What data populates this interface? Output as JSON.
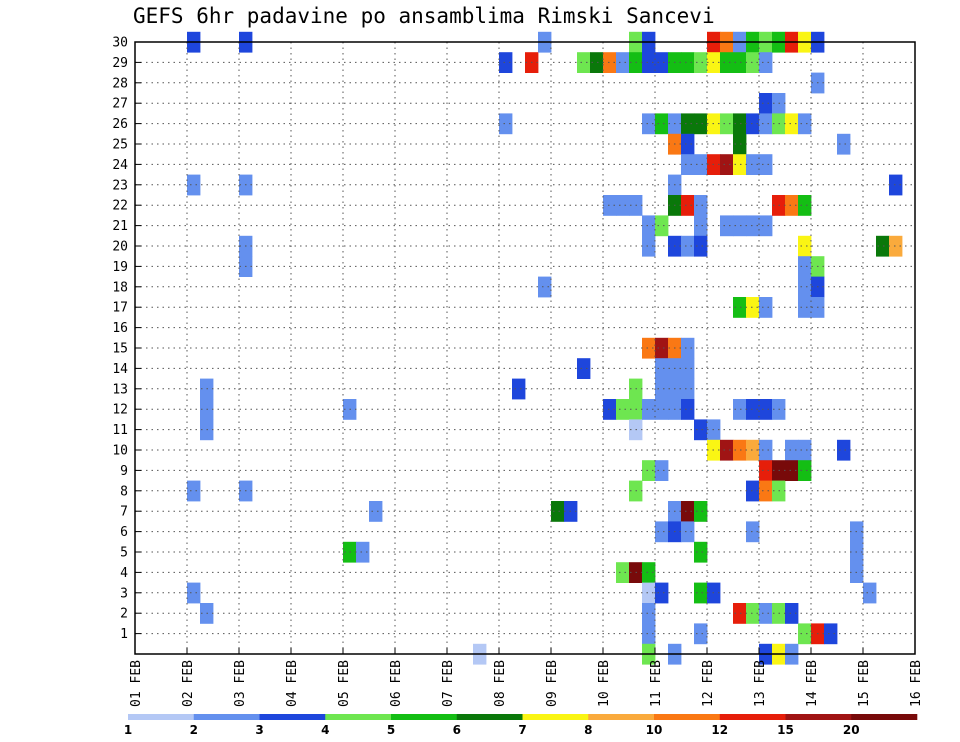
{
  "chart_data": {
    "type": "heatmap",
    "title": "GEFS 6hr padavine po ansamblima Rimski Sancevi",
    "x_ticks": [
      "01 FEB",
      "02 FEB",
      "03 FEB",
      "04 FEB",
      "05 FEB",
      "06 FEB",
      "07 FEB",
      "08 FEB",
      "09 FEB",
      "10 FEB",
      "11 FEB",
      "12 FEB",
      "13 FEB",
      "14 FEB",
      "15 FEB",
      "16 FEB"
    ],
    "y_ticks": [
      "1",
      "2",
      "3",
      "4",
      "5",
      "6",
      "7",
      "8",
      "9",
      "10",
      "11",
      "12",
      "13",
      "14",
      "15",
      "16",
      "17",
      "18",
      "19",
      "20",
      "21",
      "22",
      "23",
      "24",
      "25",
      "26",
      "27",
      "28",
      "29",
      "30"
    ],
    "grid": true,
    "colorbar": {
      "labels": [
        "1",
        "2",
        "3",
        "4",
        "5",
        "6",
        "7",
        "8",
        "10",
        "12",
        "15",
        "20"
      ],
      "colors": [
        "#b4c8f5",
        "#6490ee",
        "#1e46dc",
        "#6ee650",
        "#14be14",
        "#0a780a",
        "#faf514",
        "#faaa3c",
        "#fa7814",
        "#e61e0a",
        "#a01414",
        "#780a0a"
      ]
    },
    "cells": [
      [
        2.0,
        30,
        2
      ],
      [
        2.0,
        3,
        1
      ],
      [
        2.0,
        8,
        1
      ],
      [
        2.0,
        23,
        1
      ],
      [
        2.25,
        12,
        1
      ],
      [
        2.25,
        13,
        1
      ],
      [
        2.25,
        2,
        1
      ],
      [
        2.25,
        11,
        1
      ],
      [
        3.0,
        30,
        2
      ],
      [
        3.0,
        19,
        1
      ],
      [
        3.0,
        20,
        1
      ],
      [
        3.0,
        8,
        1
      ],
      [
        3.0,
        23,
        1
      ],
      [
        5.0,
        5,
        4
      ],
      [
        5.25,
        5,
        1
      ],
      [
        5.0,
        12,
        1
      ],
      [
        5.5,
        7,
        1
      ],
      [
        7.5,
        0,
        0
      ],
      [
        8.0,
        29,
        2
      ],
      [
        8.0,
        26,
        1
      ],
      [
        8.25,
        13,
        2
      ],
      [
        8.5,
        29,
        9
      ],
      [
        8.75,
        30,
        1
      ],
      [
        8.75,
        18,
        1
      ],
      [
        9.0,
        7,
        5
      ],
      [
        9.25,
        7,
        2
      ],
      [
        9.5,
        29,
        3
      ],
      [
        9.5,
        14,
        2
      ],
      [
        9.75,
        29,
        5
      ],
      [
        10.0,
        29,
        8
      ],
      [
        10.0,
        22,
        1
      ],
      [
        10.0,
        12,
        2
      ],
      [
        10.25,
        29,
        1
      ],
      [
        10.25,
        22,
        1
      ],
      [
        10.25,
        12,
        3
      ],
      [
        10.25,
        4,
        3
      ],
      [
        10.5,
        30,
        3
      ],
      [
        10.5,
        29,
        4
      ],
      [
        10.5,
        22,
        1
      ],
      [
        10.5,
        13,
        3
      ],
      [
        10.5,
        12,
        3
      ],
      [
        10.5,
        11,
        0
      ],
      [
        10.5,
        8,
        3
      ],
      [
        10.5,
        4,
        11
      ],
      [
        10.75,
        30,
        2
      ],
      [
        10.75,
        29,
        2
      ],
      [
        10.75,
        26,
        1
      ],
      [
        10.75,
        21,
        1
      ],
      [
        10.75,
        20,
        1
      ],
      [
        10.75,
        15,
        8
      ],
      [
        10.75,
        12,
        1
      ],
      [
        10.75,
        9,
        3
      ],
      [
        10.75,
        4,
        4
      ],
      [
        10.75,
        3,
        0
      ],
      [
        10.75,
        2,
        1
      ],
      [
        10.75,
        1,
        1
      ],
      [
        10.75,
        0,
        3
      ],
      [
        11.0,
        29,
        2
      ],
      [
        11.0,
        26,
        4
      ],
      [
        11.0,
        21,
        3
      ],
      [
        11.0,
        15,
        10
      ],
      [
        11.0,
        14,
        1
      ],
      [
        11.0,
        13,
        1
      ],
      [
        11.0,
        12,
        1
      ],
      [
        11.0,
        9,
        1
      ],
      [
        11.0,
        6,
        1
      ],
      [
        11.0,
        3,
        2
      ],
      [
        11.25,
        29,
        4
      ],
      [
        11.25,
        26,
        1
      ],
      [
        11.25,
        25,
        8
      ],
      [
        11.25,
        23,
        1
      ],
      [
        11.25,
        22,
        5
      ],
      [
        11.25,
        20,
        2
      ],
      [
        11.25,
        15,
        8
      ],
      [
        11.25,
        14,
        1
      ],
      [
        11.25,
        13,
        1
      ],
      [
        11.25,
        12,
        1
      ],
      [
        11.25,
        7,
        1
      ],
      [
        11.25,
        6,
        2
      ],
      [
        11.25,
        0,
        1
      ],
      [
        11.5,
        29,
        4
      ],
      [
        11.5,
        26,
        5
      ],
      [
        11.5,
        25,
        2
      ],
      [
        11.5,
        24,
        1
      ],
      [
        11.5,
        22,
        9
      ],
      [
        11.5,
        20,
        1
      ],
      [
        11.5,
        15,
        1
      ],
      [
        11.5,
        14,
        1
      ],
      [
        11.5,
        13,
        1
      ],
      [
        11.5,
        12,
        2
      ],
      [
        11.5,
        7,
        11
      ],
      [
        11.5,
        6,
        1
      ],
      [
        11.75,
        29,
        3
      ],
      [
        11.75,
        26,
        5
      ],
      [
        11.75,
        24,
        1
      ],
      [
        11.75,
        22,
        1
      ],
      [
        11.75,
        21,
        1
      ],
      [
        11.75,
        20,
        2
      ],
      [
        11.75,
        11,
        2
      ],
      [
        11.75,
        7,
        4
      ],
      [
        11.75,
        5,
        4
      ],
      [
        11.75,
        3,
        4
      ],
      [
        11.75,
        1,
        1
      ],
      [
        12.0,
        30,
        9
      ],
      [
        12.0,
        29,
        6
      ],
      [
        12.0,
        26,
        6
      ],
      [
        12.0,
        24,
        9
      ],
      [
        12.0,
        11,
        1
      ],
      [
        12.0,
        10,
        6
      ],
      [
        12.0,
        3,
        2
      ],
      [
        12.25,
        30,
        8
      ],
      [
        12.25,
        29,
        4
      ],
      [
        12.25,
        26,
        3
      ],
      [
        12.25,
        24,
        10
      ],
      [
        12.25,
        21,
        1
      ],
      [
        12.25,
        10,
        10
      ],
      [
        12.5,
        30,
        1
      ],
      [
        12.5,
        29,
        4
      ],
      [
        12.5,
        26,
        5
      ],
      [
        12.5,
        25,
        5
      ],
      [
        12.5,
        24,
        6
      ],
      [
        12.5,
        21,
        1
      ],
      [
        12.5,
        17,
        4
      ],
      [
        12.5,
        12,
        1
      ],
      [
        12.5,
        10,
        8
      ],
      [
        12.5,
        2,
        9
      ],
      [
        12.75,
        30,
        4
      ],
      [
        12.75,
        29,
        3
      ],
      [
        12.75,
        26,
        2
      ],
      [
        12.75,
        24,
        1
      ],
      [
        12.75,
        21,
        1
      ],
      [
        12.75,
        17,
        6
      ],
      [
        12.75,
        12,
        2
      ],
      [
        12.75,
        10,
        7
      ],
      [
        12.75,
        8,
        2
      ],
      [
        12.75,
        6,
        1
      ],
      [
        12.75,
        2,
        3
      ],
      [
        13.0,
        30,
        3
      ],
      [
        13.0,
        29,
        1
      ],
      [
        13.0,
        27,
        2
      ],
      [
        13.0,
        26,
        1
      ],
      [
        13.0,
        24,
        1
      ],
      [
        13.0,
        21,
        1
      ],
      [
        13.0,
        17,
        1
      ],
      [
        13.0,
        12,
        2
      ],
      [
        13.0,
        10,
        1
      ],
      [
        13.0,
        9,
        9
      ],
      [
        13.0,
        8,
        8
      ],
      [
        13.0,
        2,
        1
      ],
      [
        13.0,
        0,
        2
      ],
      [
        13.25,
        30,
        4
      ],
      [
        13.25,
        27,
        1
      ],
      [
        13.25,
        26,
        3
      ],
      [
        13.25,
        22,
        9
      ],
      [
        13.25,
        12,
        1
      ],
      [
        13.25,
        9,
        11
      ],
      [
        13.25,
        8,
        3
      ],
      [
        13.25,
        2,
        3
      ],
      [
        13.25,
        0,
        6
      ],
      [
        13.5,
        30,
        9
      ],
      [
        13.5,
        26,
        6
      ],
      [
        13.5,
        22,
        8
      ],
      [
        13.5,
        10,
        1
      ],
      [
        13.5,
        9,
        11
      ],
      [
        13.5,
        2,
        2
      ],
      [
        13.5,
        0,
        1
      ],
      [
        13.75,
        30,
        6
      ],
      [
        13.75,
        26,
        1
      ],
      [
        13.75,
        22,
        4
      ],
      [
        13.75,
        20,
        6
      ],
      [
        13.75,
        19,
        1
      ],
      [
        13.75,
        18,
        1
      ],
      [
        13.75,
        17,
        1
      ],
      [
        13.75,
        10,
        1
      ],
      [
        13.75,
        9,
        4
      ],
      [
        13.75,
        1,
        3
      ],
      [
        14.0,
        30,
        2
      ],
      [
        14.0,
        28,
        1
      ],
      [
        14.0,
        19,
        3
      ],
      [
        14.0,
        18,
        2
      ],
      [
        14.0,
        17,
        1
      ],
      [
        14.0,
        1,
        9
      ],
      [
        14.25,
        1,
        2
      ],
      [
        14.5,
        25,
        1
      ],
      [
        14.5,
        10,
        2
      ],
      [
        14.75,
        6,
        1
      ],
      [
        14.75,
        5,
        1
      ],
      [
        14.75,
        4,
        1
      ],
      [
        15.0,
        3,
        1
      ],
      [
        15.25,
        20,
        5
      ],
      [
        15.5,
        23,
        2
      ],
      [
        15.5,
        20,
        7
      ]
    ]
  }
}
